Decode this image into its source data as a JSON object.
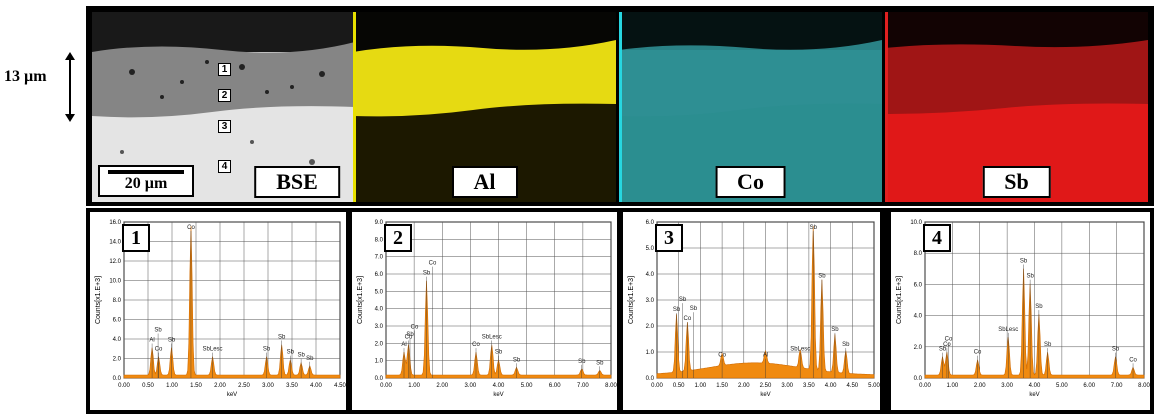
{
  "scale_side": {
    "label": "13 µm"
  },
  "maps": [
    {
      "id": "bse",
      "label": "BSE",
      "scale": "20 µm",
      "bg_top": "#1c1c1c",
      "layer": "#8a8a8a",
      "bottom": "#e6e6e6",
      "divider": "#ffffff"
    },
    {
      "id": "al",
      "label": "Al",
      "bg_top": "#050505",
      "layer": "#e8dc10",
      "bottom": "#1e1a00",
      "divider": "#e8e000"
    },
    {
      "id": "co",
      "label": "Co",
      "bg_top": "#041414",
      "layer": "#2fa3a5",
      "bottom": "#2a8a8c",
      "divider": "#27d6e0"
    },
    {
      "id": "sb",
      "label": "Sb",
      "bg_top": "#140303",
      "layer": "#b11818",
      "bottom": "#e01a1a",
      "divider": "#e02020"
    }
  ],
  "points": [
    "1",
    "2",
    "3",
    "4"
  ],
  "spectra": [
    {
      "id": "1",
      "ylabel": "Counts[x1.E+3]",
      "xlabel": "keV",
      "yticks": [
        "0.0",
        "2.0",
        "4.0",
        "6.0",
        "8.0",
        "10.0",
        "12.0",
        "14.0",
        "16.0"
      ],
      "xticks": [
        "0.00",
        "0.50",
        "1.00",
        "1.50",
        "2.00",
        "2.50",
        "3.00",
        "3.50",
        "4.00",
        "4.50"
      ],
      "peaks_labels": [
        "Al",
        "Co",
        "Sb",
        "Co",
        "SbLesc",
        "Sb",
        "Sb",
        "Sb",
        "Sb",
        "Sb",
        "Sb"
      ]
    },
    {
      "id": "2",
      "ylabel": "Counts[x1.E+3]",
      "xlabel": "keV",
      "yticks": [
        "0.0",
        "1.0",
        "2.0",
        "3.0",
        "4.0",
        "5.0",
        "6.0",
        "7.0",
        "8.0",
        "9.0"
      ],
      "xticks": [
        "0.00",
        "1.00",
        "2.00",
        "3.00",
        "4.00",
        "5.00",
        "6.00",
        "7.00",
        "8.00"
      ],
      "peaks_labels": [
        "Al",
        "Co",
        "Sb",
        "Co",
        "SbLesc",
        "Sb",
        "Sb",
        "Sb",
        "Sb",
        "Sb",
        "Co",
        "Co"
      ]
    },
    {
      "id": "3",
      "ylabel": "Counts[x1.E+3]",
      "xlabel": "keV",
      "yticks": [
        "0.0",
        "1.0",
        "2.0",
        "3.0",
        "4.0",
        "5.0",
        "6.0"
      ],
      "xticks": [
        "0.00",
        "0.50",
        "1.00",
        "1.50",
        "2.00",
        "2.50",
        "3.00",
        "3.50",
        "4.00",
        "4.50",
        "5.00"
      ],
      "peaks_labels": [
        "Sb",
        "Co",
        "Co",
        "Al",
        "SbLesc",
        "Sb",
        "Sb",
        "Sb",
        "Sb",
        "Sb",
        "Sb"
      ]
    },
    {
      "id": "4",
      "ylabel": "Counts[x1.E+3]",
      "xlabel": "keV",
      "yticks": [
        "0.0",
        "2.0",
        "4.0",
        "6.0",
        "8.0",
        "10.0"
      ],
      "xticks": [
        "0.00",
        "1.00",
        "2.00",
        "3.00",
        "4.00",
        "5.00",
        "6.00",
        "7.00",
        "8.00"
      ],
      "peaks_labels": [
        "Sb",
        "Co",
        "Co",
        "SbLesc",
        "Sb",
        "Sb",
        "Sb",
        "Sb",
        "Sb",
        "Co",
        "Co"
      ]
    }
  ],
  "colors": {
    "spectrum_fill": "#f08a10",
    "spectrum_stroke": "#d06a00",
    "grid": "#555555"
  }
}
